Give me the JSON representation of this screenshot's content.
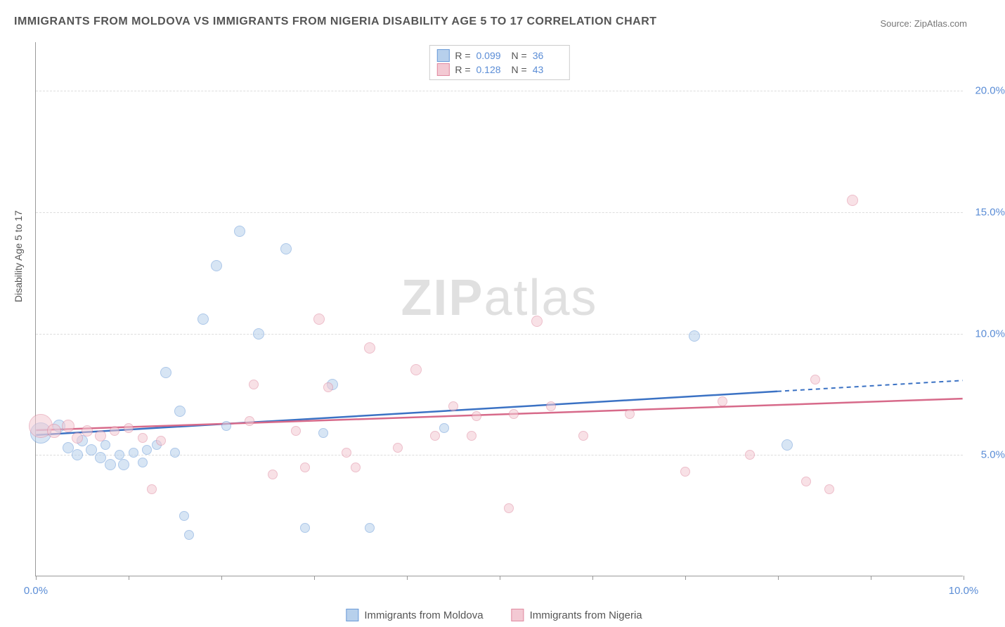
{
  "title": "IMMIGRANTS FROM MOLDOVA VS IMMIGRANTS FROM NIGERIA DISABILITY AGE 5 TO 17 CORRELATION CHART",
  "source": "Source: ZipAtlas.com",
  "y_axis_label": "Disability Age 5 to 17",
  "watermark": "ZIPatlas",
  "chart": {
    "type": "scatter",
    "xlim": [
      0,
      10
    ],
    "ylim": [
      0,
      22
    ],
    "xticks": [
      0,
      1,
      2,
      3,
      4,
      5,
      6,
      7,
      8,
      9,
      10
    ],
    "xtick_labels": {
      "0": "0.0%",
      "10": "10.0%"
    },
    "yticks": [
      5,
      10,
      15,
      20
    ],
    "ytick_labels": {
      "5": "5.0%",
      "10": "10.0%",
      "15": "15.0%",
      "20": "20.0%"
    },
    "background_color": "#ffffff",
    "grid_color": "#dddddd",
    "axis_color": "#999999",
    "tick_label_color": "#5b8dd6",
    "series": [
      {
        "name": "Immigrants from Moldova",
        "color_fill": "#b7d0ec",
        "color_stroke": "#6a9bd8",
        "fill_opacity": 0.55,
        "trend": {
          "x1": 0,
          "y1": 5.8,
          "x2": 8.0,
          "y2": 7.6,
          "x2_dash": 10,
          "y2_dash": 8.05,
          "color": "#3b72c4"
        },
        "stats": {
          "R": "0.099",
          "N": "36"
        },
        "points": [
          {
            "x": 0.05,
            "y": 5.9,
            "r": 15
          },
          {
            "x": 0.25,
            "y": 6.2,
            "r": 9
          },
          {
            "x": 0.35,
            "y": 5.3,
            "r": 8
          },
          {
            "x": 0.45,
            "y": 5.0,
            "r": 8
          },
          {
            "x": 0.5,
            "y": 5.6,
            "r": 8
          },
          {
            "x": 0.6,
            "y": 5.2,
            "r": 8
          },
          {
            "x": 0.7,
            "y": 4.9,
            "r": 8
          },
          {
            "x": 0.75,
            "y": 5.4,
            "r": 7
          },
          {
            "x": 0.8,
            "y": 4.6,
            "r": 8
          },
          {
            "x": 0.9,
            "y": 5.0,
            "r": 7
          },
          {
            "x": 0.95,
            "y": 4.6,
            "r": 8
          },
          {
            "x": 1.05,
            "y": 5.1,
            "r": 7
          },
          {
            "x": 1.15,
            "y": 4.7,
            "r": 7
          },
          {
            "x": 1.2,
            "y": 5.2,
            "r": 7
          },
          {
            "x": 1.3,
            "y": 5.4,
            "r": 7
          },
          {
            "x": 1.4,
            "y": 8.4,
            "r": 8
          },
          {
            "x": 1.5,
            "y": 5.1,
            "r": 7
          },
          {
            "x": 1.55,
            "y": 6.8,
            "r": 8
          },
          {
            "x": 1.6,
            "y": 2.5,
            "r": 7
          },
          {
            "x": 1.65,
            "y": 1.7,
            "r": 7
          },
          {
            "x": 1.8,
            "y": 10.6,
            "r": 8
          },
          {
            "x": 1.95,
            "y": 12.8,
            "r": 8
          },
          {
            "x": 2.05,
            "y": 6.2,
            "r": 7
          },
          {
            "x": 2.2,
            "y": 14.2,
            "r": 8
          },
          {
            "x": 2.4,
            "y": 10.0,
            "r": 8
          },
          {
            "x": 2.7,
            "y": 13.5,
            "r": 8
          },
          {
            "x": 2.9,
            "y": 2.0,
            "r": 7
          },
          {
            "x": 3.1,
            "y": 5.9,
            "r": 7
          },
          {
            "x": 3.2,
            "y": 7.9,
            "r": 8
          },
          {
            "x": 3.6,
            "y": 2.0,
            "r": 7
          },
          {
            "x": 4.4,
            "y": 6.1,
            "r": 7
          },
          {
            "x": 7.1,
            "y": 9.9,
            "r": 8
          },
          {
            "x": 8.1,
            "y": 5.4,
            "r": 8
          }
        ]
      },
      {
        "name": "Immigrants from Nigeria",
        "color_fill": "#f3c9d3",
        "color_stroke": "#e08aa0",
        "fill_opacity": 0.55,
        "trend": {
          "x1": 0,
          "y1": 6.0,
          "x2": 10,
          "y2": 7.3,
          "color": "#d76a8a"
        },
        "stats": {
          "R": "0.128",
          "N": "43"
        },
        "points": [
          {
            "x": 0.05,
            "y": 6.2,
            "r": 17
          },
          {
            "x": 0.2,
            "y": 6.0,
            "r": 10
          },
          {
            "x": 0.35,
            "y": 6.2,
            "r": 9
          },
          {
            "x": 0.45,
            "y": 5.7,
            "r": 8
          },
          {
            "x": 0.55,
            "y": 6.0,
            "r": 8
          },
          {
            "x": 0.7,
            "y": 5.8,
            "r": 8
          },
          {
            "x": 0.85,
            "y": 6.0,
            "r": 7
          },
          {
            "x": 1.0,
            "y": 6.1,
            "r": 7
          },
          {
            "x": 1.15,
            "y": 5.7,
            "r": 7
          },
          {
            "x": 1.25,
            "y": 3.6,
            "r": 7
          },
          {
            "x": 1.35,
            "y": 5.6,
            "r": 7
          },
          {
            "x": 2.3,
            "y": 6.4,
            "r": 7
          },
          {
            "x": 2.35,
            "y": 7.9,
            "r": 7
          },
          {
            "x": 2.55,
            "y": 4.2,
            "r": 7
          },
          {
            "x": 2.8,
            "y": 6.0,
            "r": 7
          },
          {
            "x": 2.9,
            "y": 4.5,
            "r": 7
          },
          {
            "x": 3.05,
            "y": 10.6,
            "r": 8
          },
          {
            "x": 3.15,
            "y": 7.8,
            "r": 7
          },
          {
            "x": 3.35,
            "y": 5.1,
            "r": 7
          },
          {
            "x": 3.45,
            "y": 4.5,
            "r": 7
          },
          {
            "x": 3.6,
            "y": 9.4,
            "r": 8
          },
          {
            "x": 3.9,
            "y": 5.3,
            "r": 7
          },
          {
            "x": 4.1,
            "y": 8.5,
            "r": 8
          },
          {
            "x": 4.3,
            "y": 5.8,
            "r": 7
          },
          {
            "x": 4.5,
            "y": 7.0,
            "r": 7
          },
          {
            "x": 4.7,
            "y": 5.8,
            "r": 7
          },
          {
            "x": 4.75,
            "y": 6.6,
            "r": 7
          },
          {
            "x": 5.1,
            "y": 2.8,
            "r": 7
          },
          {
            "x": 5.15,
            "y": 6.7,
            "r": 7
          },
          {
            "x": 5.4,
            "y": 10.5,
            "r": 8
          },
          {
            "x": 5.55,
            "y": 7.0,
            "r": 7
          },
          {
            "x": 5.9,
            "y": 5.8,
            "r": 7
          },
          {
            "x": 6.4,
            "y": 6.7,
            "r": 7
          },
          {
            "x": 7.0,
            "y": 4.3,
            "r": 7
          },
          {
            "x": 7.4,
            "y": 7.2,
            "r": 7
          },
          {
            "x": 7.7,
            "y": 5.0,
            "r": 7
          },
          {
            "x": 8.3,
            "y": 3.9,
            "r": 7
          },
          {
            "x": 8.4,
            "y": 8.1,
            "r": 7
          },
          {
            "x": 8.55,
            "y": 3.6,
            "r": 7
          },
          {
            "x": 8.8,
            "y": 15.5,
            "r": 8
          }
        ]
      }
    ]
  },
  "legend_labels": {
    "R": "R =",
    "N": "N ="
  }
}
